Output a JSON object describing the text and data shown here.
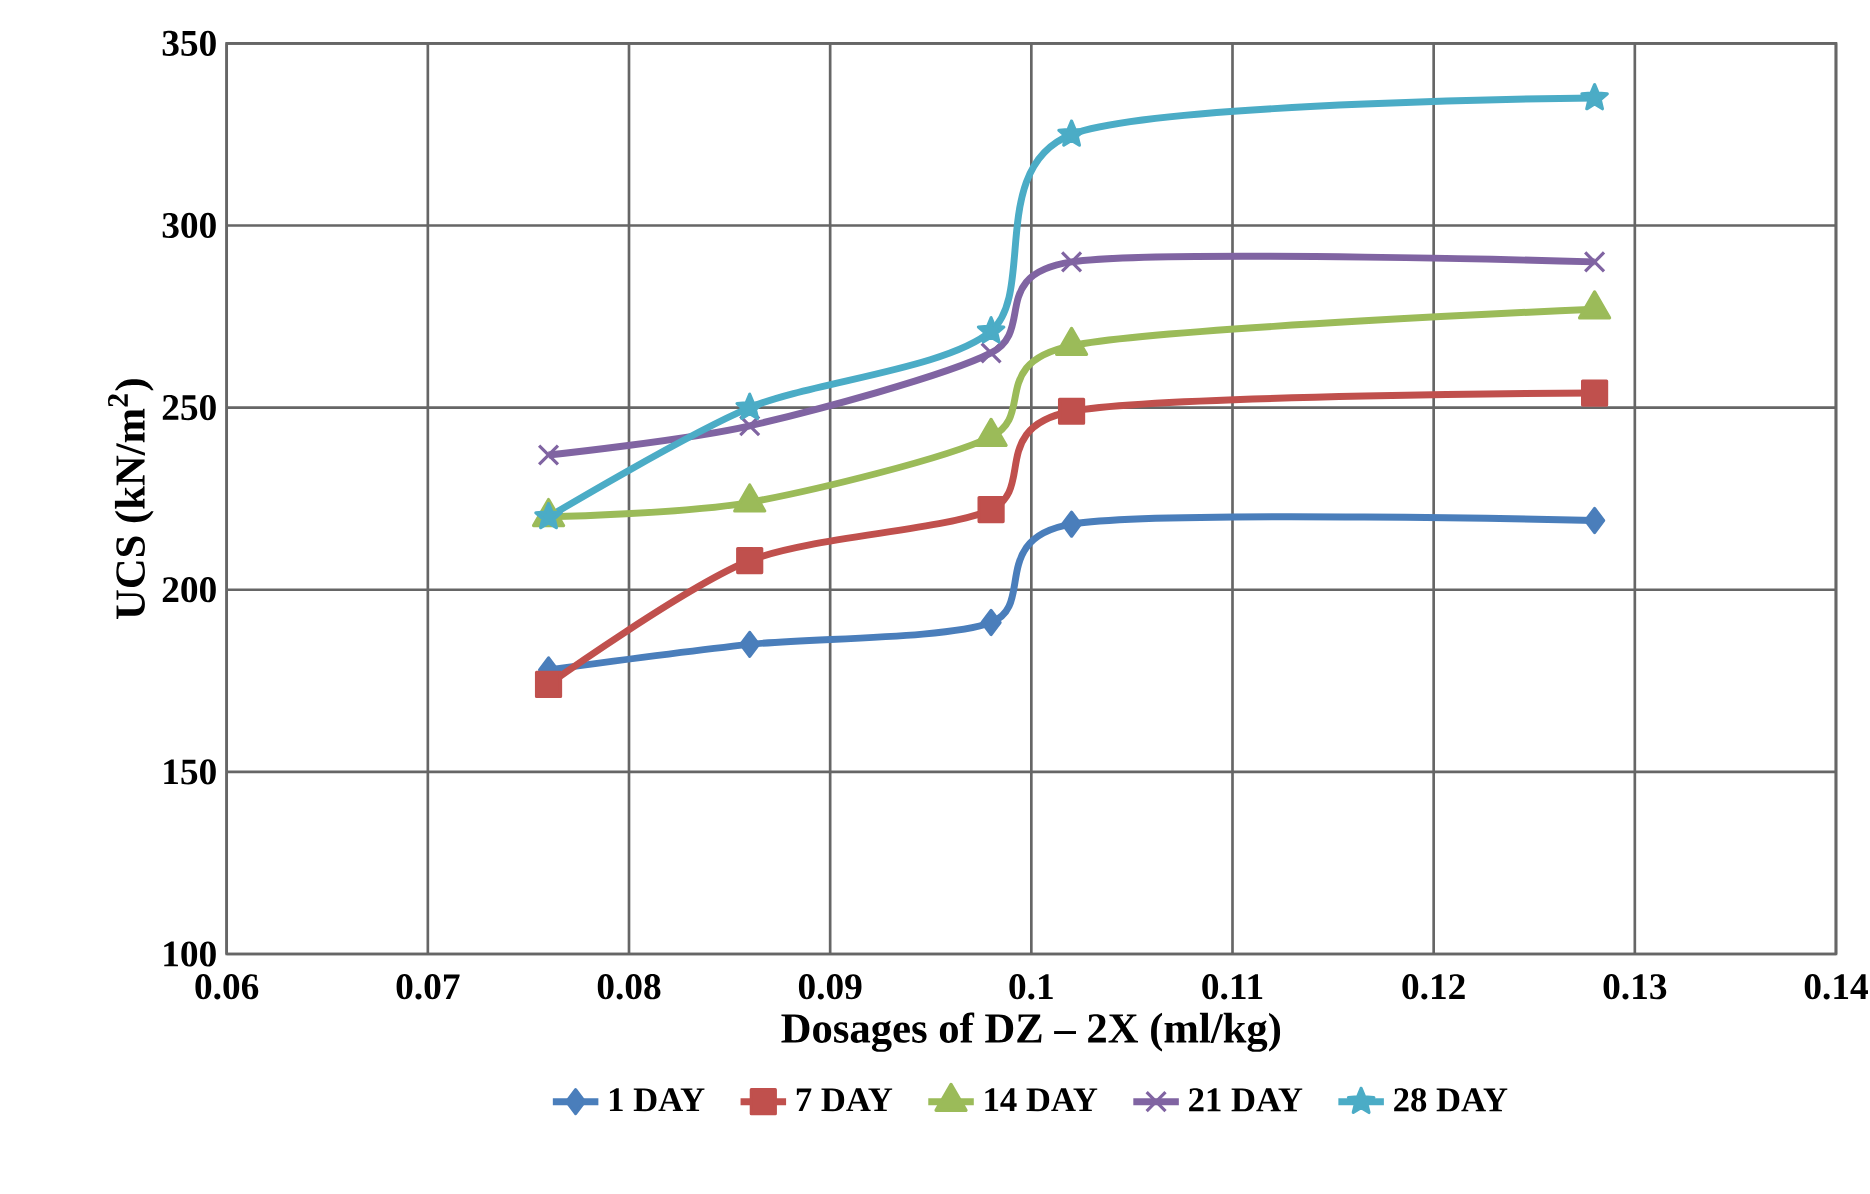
{
  "chart_data": {
    "type": "line",
    "xlabel": "Dosages of DZ – 2X (ml/kg)",
    "ylabel": "UCS (kN/m$^{2}$)",
    "x": [
      0.076,
      0.086,
      0.098,
      0.102,
      0.128
    ],
    "series": [
      {
        "name": "1 DAY",
        "color": "#4a7ebb",
        "marker": "diamond",
        "values": [
          178,
          185,
          191,
          218,
          219
        ]
      },
      {
        "name": "7 DAY",
        "color": "#c0504d",
        "marker": "square",
        "values": [
          174,
          208,
          222,
          249,
          254
        ]
      },
      {
        "name": "14 DAY",
        "color": "#9bbb59",
        "marker": "triangle",
        "values": [
          220,
          224,
          242,
          267,
          277
        ]
      },
      {
        "name": "21 DAY",
        "color": "#8064a2",
        "marker": "cross",
        "values": [
          237,
          245,
          265,
          290,
          290
        ]
      },
      {
        "name": "28 DAY",
        "color": "#4bacc6",
        "marker": "star",
        "values": [
          220,
          250,
          271,
          325,
          335
        ]
      }
    ],
    "xlim": [
      0.06,
      0.14
    ],
    "xticks": [
      0.06,
      0.07,
      0.08,
      0.09,
      0.1,
      0.11,
      0.12,
      0.13,
      0.14
    ],
    "ylim": [
      100,
      350
    ],
    "yticks": [
      100,
      150,
      200,
      250,
      300,
      350
    ],
    "grid": true,
    "legend": "bottom",
    "line_style": "solid"
  }
}
